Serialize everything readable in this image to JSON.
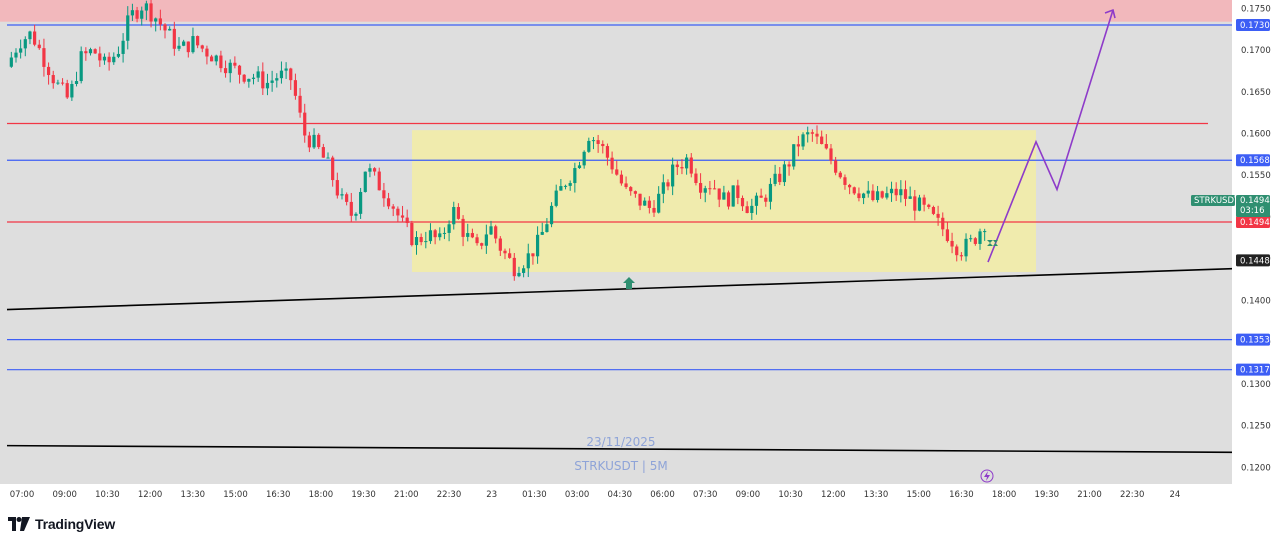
{
  "chart_data": {
    "type": "candlestick",
    "symbol": "STRKUSDT",
    "interval": "5M",
    "date_watermark": "23/11/2025",
    "watermark_symbol": "STRKUSDT | 5M",
    "y_range": [
      0.118,
      0.176
    ],
    "y_ticks": [
      "0.1200",
      "0.1250",
      "0.1300",
      "0.1350",
      "0.1400",
      "0.1450",
      "0.1500",
      "0.1550",
      "0.1600",
      "0.1650",
      "0.1700",
      "0.1750"
    ],
    "x_ticks": [
      "07:00",
      "09:00",
      "10:30",
      "12:00",
      "13:30",
      "15:00",
      "16:30",
      "18:00",
      "19:30",
      "21:00",
      "22:30",
      "23",
      "01:30",
      "03:00",
      "04:30",
      "06:00",
      "07:30",
      "09:00",
      "10:30",
      "12:00",
      "13:30",
      "15:00",
      "16:30",
      "18:00",
      "19:30",
      "21:00",
      "22:30",
      "24"
    ],
    "current_price": "0.1494",
    "countdown": "03:16",
    "price_labels": [
      {
        "price": "0.1730",
        "color": "#3d5ef5"
      },
      {
        "price": "0.1568",
        "color": "#3d5ef5"
      },
      {
        "price": "0.1494",
        "color": "#f23645"
      },
      {
        "price": "0.1448",
        "color": "#222222"
      },
      {
        "price": "0.1353",
        "color": "#3d5ef5"
      },
      {
        "price": "0.1317",
        "color": "#3d5ef5"
      }
    ],
    "horizontal_levels": [
      {
        "price": 0.173,
        "color": "#3d5ef5"
      },
      {
        "price": 0.1612,
        "color": "#f23645"
      },
      {
        "price": 0.1568,
        "color": "#3d5ef5"
      },
      {
        "price": 0.1494,
        "color": "#f23645"
      },
      {
        "price": 0.1353,
        "color": "#3d5ef5"
      },
      {
        "price": 0.1317,
        "color": "#3d5ef5"
      }
    ],
    "resistance_zone": {
      "from": 0.1734,
      "to": 0.176,
      "color": "#f4b4b8"
    },
    "range_box": {
      "from_time": "20:30",
      "to_time": "18:00",
      "from_price": 0.1434,
      "to_price": 0.1604,
      "color": "#f3eda5"
    },
    "trendlines": [
      {
        "start": 0.1389,
        "end": 0.1438,
        "color": "#000000"
      },
      {
        "start": 0.1226,
        "end": 0.1218,
        "color": "#000000"
      }
    ],
    "projection_path": [
      0.1446,
      0.159,
      0.1533,
      0.1748
    ],
    "candle_path": [
      0.168,
      0.171,
      0.172,
      0.169,
      0.166,
      0.164,
      0.169,
      0.17,
      0.168,
      0.17,
      0.174,
      0.1755,
      0.174,
      0.172,
      0.17,
      0.171,
      0.17,
      0.169,
      0.168,
      0.1672,
      0.1668,
      0.166,
      0.167,
      0.1665,
      0.16,
      0.1585,
      0.156,
      0.152,
      0.15,
      0.156,
      0.154,
      0.152,
      0.149,
      0.147,
      0.148,
      0.147,
      0.151,
      0.148,
      0.146,
      0.149,
      0.146,
      0.144,
      0.145,
      0.147,
      0.151,
      0.154,
      0.156,
      0.16,
      0.1585,
      0.156,
      0.153,
      0.152,
      0.151,
      0.153,
      0.156,
      0.157,
      0.154,
      0.154,
      0.152,
      0.153,
      0.151,
      0.152,
      0.154,
      0.156,
      0.159,
      0.16,
      0.158,
      0.156,
      0.154,
      0.153,
      0.152,
      0.1525,
      0.153,
      0.152,
      0.151,
      0.1495,
      0.148,
      0.146,
      0.147,
      0.1494
    ]
  },
  "brand": {
    "name": "TradingView"
  }
}
